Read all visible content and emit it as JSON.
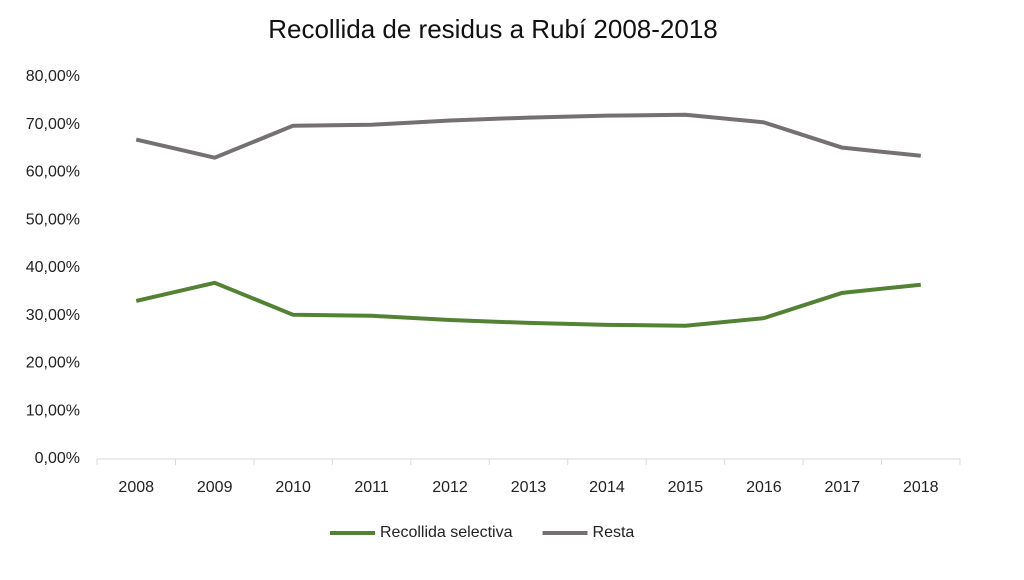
{
  "chart_data": {
    "type": "line",
    "title": "Recollida de residus a Rubí 2008-2018",
    "categories": [
      "2008",
      "2009",
      "2010",
      "2011",
      "2012",
      "2013",
      "2014",
      "2015",
      "2016",
      "2017",
      "2018"
    ],
    "series": [
      {
        "name": "Recollida selectiva",
        "color": "#548235",
        "values": [
          33.1,
          36.9,
          30.2,
          30.0,
          29.1,
          28.5,
          28.1,
          27.9,
          29.5,
          34.8,
          36.5
        ]
      },
      {
        "name": "Resta",
        "color": "#767171",
        "values": [
          66.9,
          63.1,
          69.8,
          70.0,
          70.9,
          71.5,
          71.9,
          72.1,
          70.5,
          65.2,
          63.5
        ]
      }
    ],
    "ylim": [
      0,
      80
    ],
    "yticks": [
      {
        "value": 0,
        "label": "0,00%"
      },
      {
        "value": 10,
        "label": "10,00%"
      },
      {
        "value": 20,
        "label": "20,00%"
      },
      {
        "value": 30,
        "label": "30,00%"
      },
      {
        "value": 40,
        "label": "40,00%"
      },
      {
        "value": 50,
        "label": "50,00%"
      },
      {
        "value": 60,
        "label": "60,00%"
      },
      {
        "value": 70,
        "label": "70,00%"
      },
      {
        "value": 80,
        "label": "80,00%"
      }
    ],
    "grid": false,
    "legend": "bottom"
  }
}
